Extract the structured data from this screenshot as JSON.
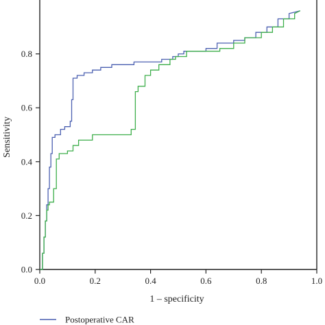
{
  "chart_data": {
    "type": "line",
    "xlabel": "1 – specificity",
    "ylabel": "Sensitivity",
    "xlim": [
      0,
      1.0
    ],
    "ylim": [
      0,
      1.0
    ],
    "x_ticks": [
      "0.0",
      "0.2",
      "0.4",
      "0.6",
      "0.8",
      "1.0"
    ],
    "y_ticks": [
      "0.0",
      "0.2",
      "0.4",
      "0.6",
      "0.8"
    ],
    "grid": false,
    "legend_placement": "bottom",
    "series": [
      {
        "name": "Postoperative CAR",
        "color": "#4a5fb0",
        "x": [
          0.0,
          0.01,
          0.01,
          0.015,
          0.015,
          0.02,
          0.02,
          0.025,
          0.025,
          0.03,
          0.03,
          0.035,
          0.035,
          0.04,
          0.04,
          0.045,
          0.045,
          0.055,
          0.055,
          0.06,
          0.06,
          0.075,
          0.075,
          0.09,
          0.09,
          0.11,
          0.11,
          0.115,
          0.115,
          0.12,
          0.12,
          0.135,
          0.135,
          0.16,
          0.16,
          0.19,
          0.19,
          0.22,
          0.22,
          0.26,
          0.26,
          0.34,
          0.34,
          0.44,
          0.44,
          0.48,
          0.48,
          0.5,
          0.5,
          0.52,
          0.52,
          0.6,
          0.6,
          0.64,
          0.64,
          0.7,
          0.7,
          0.74,
          0.74,
          0.78,
          0.78,
          0.82,
          0.82,
          0.86,
          0.86,
          0.9,
          0.9,
          0.94
        ],
        "y": [
          0.0,
          0.0,
          0.06,
          0.06,
          0.12,
          0.12,
          0.18,
          0.18,
          0.24,
          0.24,
          0.3,
          0.3,
          0.38,
          0.38,
          0.43,
          0.43,
          0.49,
          0.49,
          0.5,
          0.5,
          0.5,
          0.5,
          0.52,
          0.52,
          0.53,
          0.53,
          0.55,
          0.55,
          0.63,
          0.63,
          0.71,
          0.71,
          0.72,
          0.72,
          0.73,
          0.73,
          0.74,
          0.74,
          0.75,
          0.75,
          0.76,
          0.76,
          0.77,
          0.77,
          0.78,
          0.78,
          0.79,
          0.79,
          0.8,
          0.8,
          0.81,
          0.81,
          0.82,
          0.82,
          0.84,
          0.84,
          0.85,
          0.85,
          0.86,
          0.86,
          0.88,
          0.88,
          0.9,
          0.9,
          0.93,
          0.93,
          0.95,
          0.96
        ]
      },
      {
        "name": "",
        "color": "#3dae4a",
        "x": [
          0.0,
          0.01,
          0.01,
          0.015,
          0.015,
          0.02,
          0.02,
          0.025,
          0.025,
          0.03,
          0.03,
          0.035,
          0.035,
          0.05,
          0.05,
          0.06,
          0.06,
          0.07,
          0.07,
          0.1,
          0.1,
          0.12,
          0.12,
          0.14,
          0.14,
          0.19,
          0.19,
          0.33,
          0.33,
          0.345,
          0.345,
          0.355,
          0.355,
          0.38,
          0.38,
          0.4,
          0.4,
          0.43,
          0.43,
          0.47,
          0.47,
          0.49,
          0.49,
          0.53,
          0.53,
          0.65,
          0.65,
          0.7,
          0.7,
          0.74,
          0.74,
          0.8,
          0.8,
          0.84,
          0.84,
          0.88,
          0.88,
          0.92,
          0.92,
          0.94
        ],
        "y": [
          0.0,
          0.0,
          0.06,
          0.06,
          0.12,
          0.12,
          0.18,
          0.18,
          0.22,
          0.22,
          0.24,
          0.24,
          0.25,
          0.25,
          0.3,
          0.3,
          0.41,
          0.41,
          0.43,
          0.43,
          0.44,
          0.44,
          0.46,
          0.46,
          0.48,
          0.48,
          0.5,
          0.5,
          0.52,
          0.52,
          0.66,
          0.66,
          0.68,
          0.68,
          0.72,
          0.72,
          0.74,
          0.74,
          0.76,
          0.76,
          0.78,
          0.78,
          0.79,
          0.79,
          0.81,
          0.81,
          0.82,
          0.82,
          0.84,
          0.84,
          0.86,
          0.86,
          0.88,
          0.88,
          0.9,
          0.9,
          0.93,
          0.93,
          0.95,
          0.96
        ]
      }
    ]
  }
}
